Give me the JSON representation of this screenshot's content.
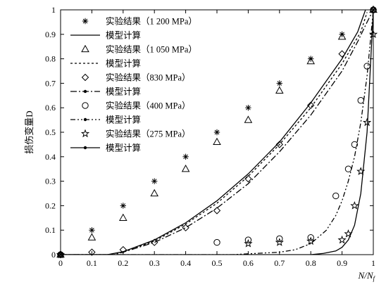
{
  "chart_data": {
    "type": "scatter",
    "xlabel": "N/Nf",
    "ylabel": "损伤变量D",
    "xlim": [
      0,
      1
    ],
    "ylim": [
      0,
      1
    ],
    "xticks": [
      "0",
      "0.1",
      "0.2",
      "0.3",
      "0.4",
      "0.5",
      "0.6",
      "0.7",
      "0.8",
      "0.9",
      "1"
    ],
    "yticks": [
      "0",
      "0.1",
      "0.2",
      "0.3",
      "0.4",
      "0.5",
      "0.6",
      "0.7",
      "0.8",
      "0.9",
      "1"
    ],
    "grid": false,
    "legend_position": "top-left",
    "series": [
      {
        "name": "实验结果（1 200 MPa）",
        "kind": "points",
        "marker": "asterisk",
        "x": [
          0,
          0.1,
          0.2,
          0.3,
          0.4,
          0.5,
          0.6,
          0.7,
          0.8,
          0.9,
          1
        ],
        "y": [
          0,
          0.1,
          0.2,
          0.3,
          0.4,
          0.5,
          0.6,
          0.7,
          0.8,
          0.9,
          1
        ]
      },
      {
        "name": "模型计算",
        "kind": "line",
        "dash": "solid",
        "marker": "none",
        "x": [
          0,
          0.15,
          0.2,
          0.3,
          0.4,
          0.5,
          0.6,
          0.7,
          0.8,
          0.9,
          0.95,
          0.975
        ],
        "y": [
          0,
          0,
          0.012,
          0.06,
          0.13,
          0.22,
          0.33,
          0.46,
          0.62,
          0.8,
          0.91,
          1
        ]
      },
      {
        "name": "实验结果（1 050 MPa）",
        "kind": "points",
        "marker": "triangle",
        "x": [
          0,
          0.1,
          0.2,
          0.3,
          0.4,
          0.5,
          0.6,
          0.7,
          0.8,
          0.9,
          1
        ],
        "y": [
          0,
          0.07,
          0.15,
          0.25,
          0.35,
          0.46,
          0.55,
          0.67,
          0.79,
          0.89,
          1
        ]
      },
      {
        "name": "模型计算",
        "kind": "line",
        "dash": "dotted",
        "marker": "none",
        "x": [
          0,
          0.15,
          0.2,
          0.3,
          0.4,
          0.5,
          0.6,
          0.7,
          0.8,
          0.9,
          0.96,
          0.98
        ],
        "y": [
          0,
          0,
          0.011,
          0.055,
          0.125,
          0.21,
          0.32,
          0.45,
          0.6,
          0.78,
          0.91,
          0.99
        ]
      },
      {
        "name": "实验结果（830 MPa）",
        "kind": "points",
        "marker": "diamond",
        "x": [
          0,
          0.1,
          0.2,
          0.3,
          0.4,
          0.5,
          0.6,
          0.7,
          0.8,
          0.9,
          1
        ],
        "y": [
          0,
          0.01,
          0.02,
          0.05,
          0.11,
          0.18,
          0.31,
          0.45,
          0.61,
          0.82,
          1
        ]
      },
      {
        "name": "模型计算",
        "kind": "line",
        "dash": "dashdot",
        "marker": "dot",
        "x": [
          0,
          0.17,
          0.2,
          0.3,
          0.4,
          0.5,
          0.6,
          0.7,
          0.8,
          0.9,
          0.95,
          0.98,
          1
        ],
        "y": [
          0,
          0,
          0.01,
          0.05,
          0.11,
          0.19,
          0.29,
          0.42,
          0.57,
          0.75,
          0.87,
          0.95,
          1
        ]
      },
      {
        "name": "实验结果（400 MPa）",
        "kind": "points",
        "marker": "circle",
        "x": [
          0,
          0.5,
          0.6,
          0.7,
          0.8,
          0.88,
          0.92,
          0.94,
          0.96,
          0.98,
          1
        ],
        "y": [
          0,
          0.05,
          0.06,
          0.065,
          0.07,
          0.24,
          0.35,
          0.45,
          0.63,
          0.77,
          1
        ]
      },
      {
        "name": "模型计算",
        "kind": "line",
        "dash": "dashdotdot",
        "marker": "dot",
        "x": [
          0,
          0.55,
          0.7,
          0.75,
          0.8,
          0.85,
          0.88,
          0.9,
          0.92,
          0.94,
          0.96,
          0.98,
          1
        ],
        "y": [
          0,
          0,
          0.01,
          0.02,
          0.045,
          0.1,
          0.16,
          0.22,
          0.3,
          0.4,
          0.54,
          0.73,
          1
        ]
      },
      {
        "name": "实验结果（275 MPa）",
        "kind": "points",
        "marker": "star",
        "x": [
          0,
          0.6,
          0.7,
          0.8,
          0.9,
          0.92,
          0.94,
          0.96,
          0.98,
          1
        ],
        "y": [
          0,
          0.045,
          0.05,
          0.055,
          0.06,
          0.085,
          0.2,
          0.34,
          0.54,
          0.9
        ]
      },
      {
        "name": "模型计算",
        "kind": "line",
        "dash": "solid",
        "marker": "dot",
        "x": [
          0,
          0.8,
          0.84,
          0.88,
          0.9,
          0.92,
          0.94,
          0.96,
          0.98,
          1
        ],
        "y": [
          0,
          0,
          0.005,
          0.015,
          0.03,
          0.06,
          0.12,
          0.25,
          0.5,
          1
        ]
      }
    ]
  }
}
